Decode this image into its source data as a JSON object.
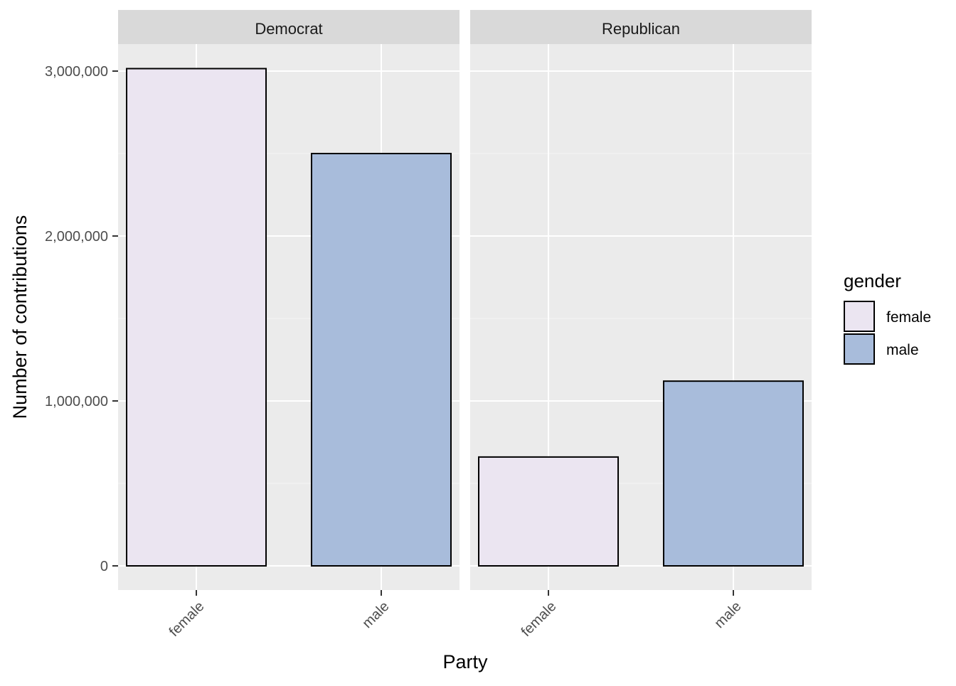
{
  "chart_data": {
    "type": "bar",
    "facets": [
      "Democrat",
      "Republican"
    ],
    "categories": [
      "female",
      "male"
    ],
    "series": [
      {
        "facet": "Democrat",
        "values": [
          3015000,
          2500000
        ]
      },
      {
        "facet": "Republican",
        "values": [
          660000,
          1120000
        ]
      }
    ],
    "colors": {
      "female": "#ebe5f1",
      "male": "#a8bcdb"
    },
    "xlabel": "Party",
    "ylabel": "Number of contributions",
    "ylim": [
      0,
      3150000
    ],
    "yticks": [
      0,
      1000000,
      2000000,
      3000000
    ],
    "ytick_labels": [
      "0",
      "1,000,000",
      "2,000,000",
      "3,000,000"
    ],
    "xtick_labels": [
      "female",
      "male"
    ],
    "legend": {
      "title": "gender",
      "items": [
        "female",
        "male"
      ],
      "position": "right"
    },
    "grid": true
  }
}
